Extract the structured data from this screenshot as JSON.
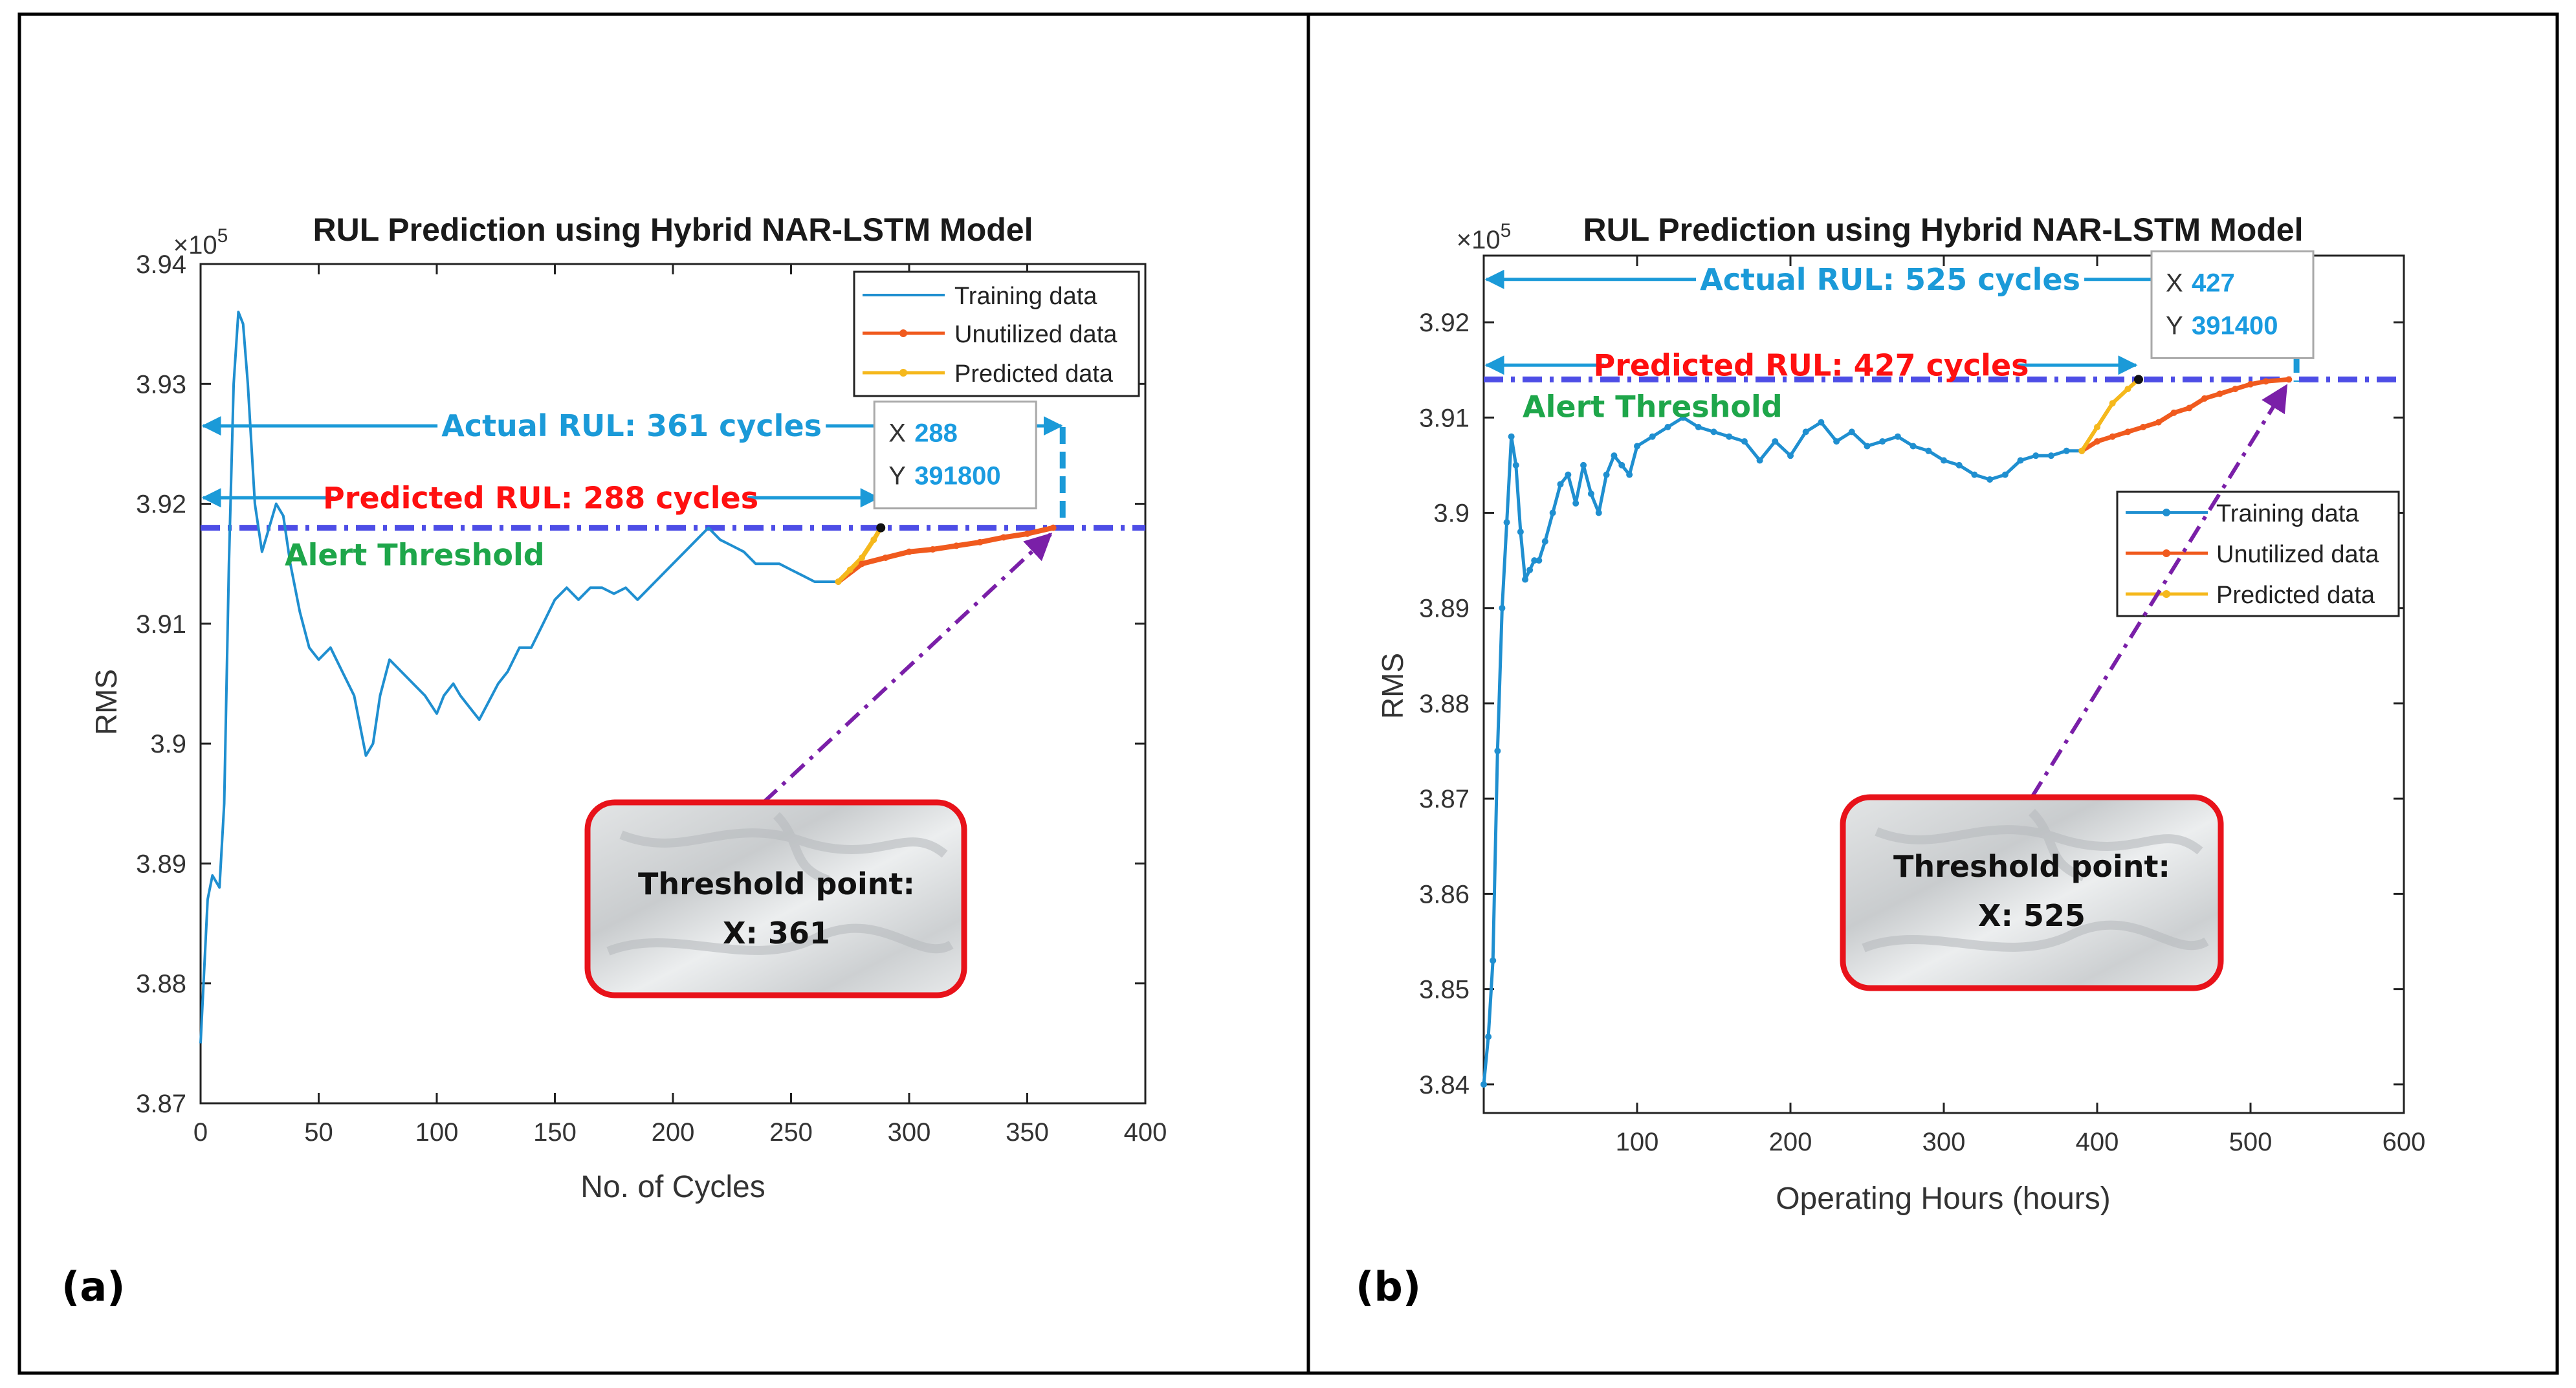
{
  "colors": {
    "training": "#1f8fd0",
    "unutilized": "#f05a1e",
    "predicted": "#f5b81c",
    "threshold": "#4d4de6",
    "actual_rul": "#1b9ad8",
    "predicted_rul": "#ff1010",
    "alert": "#1ea64a",
    "pointer": "#7a1fa8",
    "callout_border": "#e8121a",
    "tip_value": "#1a9be0"
  },
  "chart_data": [
    {
      "panel_label": "(a)",
      "type": "line",
      "title": "RUL Prediction using Hybrid NAR-LSTM Model",
      "xlabel": "No. of Cycles",
      "ylabel": "RMS",
      "y_exponent": "×10",
      "y_exponent_power": "5",
      "xlim": [
        0,
        400
      ],
      "ylim": [
        3.87,
        3.94
      ],
      "xticks": [
        "0",
        "50",
        "100",
        "150",
        "200",
        "250",
        "300",
        "350",
        "400"
      ],
      "xtick_values": [
        0,
        50,
        100,
        150,
        200,
        250,
        300,
        350,
        400
      ],
      "yticks": [
        "3.87",
        "3.88",
        "3.89",
        "3.9",
        "3.91",
        "3.92",
        "3.93",
        "3.94"
      ],
      "ytick_values": [
        3.87,
        3.88,
        3.89,
        3.9,
        3.91,
        3.92,
        3.93,
        3.94
      ],
      "grid": false,
      "legend_position": "top-right",
      "legend": [
        "Training data",
        "Unutilized data",
        "Predicted data"
      ],
      "series": [
        {
          "name": "Training data",
          "markers": false,
          "x": [
            0,
            3,
            5,
            8,
            10,
            12,
            14,
            16,
            18,
            20,
            23,
            26,
            29,
            32,
            35,
            38,
            42,
            46,
            50,
            55,
            60,
            65,
            70,
            73,
            76,
            80,
            85,
            90,
            95,
            100,
            103,
            107,
            110,
            114,
            118,
            122,
            126,
            130,
            135,
            140,
            145,
            150,
            155,
            160,
            165,
            170,
            175,
            180,
            185,
            190,
            195,
            200,
            205,
            210,
            215,
            220,
            225,
            230,
            235,
            240,
            245,
            250,
            255,
            260,
            265,
            270
          ],
          "y": [
            3.875,
            3.887,
            3.889,
            3.888,
            3.895,
            3.915,
            3.93,
            3.936,
            3.935,
            3.93,
            3.92,
            3.916,
            3.918,
            3.92,
            3.919,
            3.915,
            3.911,
            3.908,
            3.907,
            3.908,
            3.906,
            3.904,
            3.899,
            3.9,
            3.904,
            3.907,
            3.906,
            3.905,
            3.904,
            3.9025,
            3.904,
            3.905,
            3.904,
            3.903,
            3.902,
            3.9035,
            3.905,
            3.906,
            3.908,
            3.908,
            3.91,
            3.912,
            3.913,
            3.912,
            3.913,
            3.913,
            3.9125,
            3.913,
            3.912,
            3.913,
            3.914,
            3.915,
            3.916,
            3.917,
            3.918,
            3.917,
            3.9165,
            3.916,
            3.915,
            3.915,
            3.915,
            3.9145,
            3.914,
            3.9135,
            3.9135,
            3.9135
          ]
        },
        {
          "name": "Unutilized data",
          "markers": true,
          "x": [
            270,
            280,
            290,
            300,
            310,
            320,
            330,
            340,
            350,
            361
          ],
          "y": [
            3.9135,
            3.915,
            3.9155,
            3.916,
            3.9162,
            3.9165,
            3.9168,
            3.9172,
            3.9175,
            3.918
          ]
        },
        {
          "name": "Predicted data",
          "markers": true,
          "x": [
            270,
            275,
            280,
            285,
            288
          ],
          "y": [
            3.9135,
            3.9145,
            3.9155,
            3.917,
            3.918
          ]
        }
      ],
      "threshold": {
        "value": 3.918,
        "label": "Alert Threshold"
      },
      "actual_rul": {
        "text": "Actual RUL: 361 cycles",
        "x_start": 0,
        "x_end": 365,
        "y": 3.9265
      },
      "predicted_rul": {
        "text": "Predicted RUL: 288 cycles",
        "x_start": 0,
        "x_end": 288,
        "y": 3.9205
      },
      "datatip": {
        "x_label": "X",
        "x_value": "288",
        "y_label": "Y",
        "y_value": "391800",
        "x": 288,
        "y": 3.918
      },
      "callout": {
        "line1": "Threshold point:",
        "line2": "X: 361",
        "target_x": 361,
        "target_y": 3.918
      }
    },
    {
      "panel_label": "(b)",
      "type": "line",
      "title": "RUL Prediction using Hybrid NAR-LSTM Model",
      "xlabel": "Operating Hours (hours)",
      "ylabel": "RMS",
      "y_exponent": "×10",
      "y_exponent_power": "5",
      "xlim": [
        0,
        600
      ],
      "ylim": [
        3.837,
        3.927
      ],
      "xticks": [
        "100",
        "200",
        "300",
        "400",
        "500",
        "600"
      ],
      "xtick_values": [
        100,
        200,
        300,
        400,
        500,
        600
      ],
      "yticks": [
        "3.84",
        "3.85",
        "3.86",
        "3.87",
        "3.88",
        "3.89",
        "3.9",
        "3.91",
        "3.92"
      ],
      "ytick_values": [
        3.84,
        3.85,
        3.86,
        3.87,
        3.88,
        3.89,
        3.9,
        3.91,
        3.92
      ],
      "grid": false,
      "legend_position": "right",
      "legend": [
        "Training data",
        "Unutilized data",
        "Predicted data"
      ],
      "series": [
        {
          "name": "Training data",
          "markers": true,
          "x": [
            0,
            3,
            6,
            9,
            12,
            15,
            18,
            21,
            24,
            27,
            30,
            33,
            36,
            40,
            45,
            50,
            55,
            60,
            65,
            70,
            75,
            80,
            85,
            90,
            95,
            100,
            110,
            120,
            130,
            140,
            150,
            160,
            170,
            180,
            190,
            200,
            210,
            220,
            230,
            240,
            250,
            260,
            270,
            280,
            290,
            300,
            310,
            320,
            330,
            340,
            350,
            360,
            370,
            380,
            390
          ],
          "y": [
            3.84,
            3.845,
            3.853,
            3.875,
            3.89,
            3.899,
            3.908,
            3.905,
            3.898,
            3.893,
            3.894,
            3.895,
            3.895,
            3.897,
            3.9,
            3.903,
            3.904,
            3.901,
            3.905,
            3.902,
            3.9,
            3.904,
            3.906,
            3.905,
            3.904,
            3.907,
            3.908,
            3.909,
            3.91,
            3.909,
            3.9085,
            3.908,
            3.9075,
            3.9055,
            3.9075,
            3.906,
            3.9085,
            3.9095,
            3.9075,
            3.9085,
            3.907,
            3.9075,
            3.908,
            3.907,
            3.9065,
            3.9055,
            3.905,
            3.904,
            3.9035,
            3.904,
            3.9055,
            3.906,
            3.906,
            3.9065,
            3.9065
          ]
        },
        {
          "name": "Unutilized data",
          "markers": true,
          "x": [
            390,
            400,
            410,
            420,
            430,
            440,
            450,
            460,
            470,
            480,
            490,
            500,
            510,
            525
          ],
          "y": [
            3.9065,
            3.9075,
            3.908,
            3.9085,
            3.909,
            3.9095,
            3.9105,
            3.911,
            3.912,
            3.9125,
            3.913,
            3.9135,
            3.9138,
            3.914
          ]
        },
        {
          "name": "Predicted data",
          "markers": true,
          "x": [
            390,
            400,
            410,
            420,
            427
          ],
          "y": [
            3.9065,
            3.909,
            3.9115,
            3.913,
            3.914
          ]
        }
      ],
      "threshold": {
        "value": 3.914,
        "label": "Alert Threshold"
      },
      "actual_rul": {
        "text": "Actual RUL: 525 cycles",
        "x_start": 0,
        "x_end": 530,
        "y": 3.9245
      },
      "predicted_rul": {
        "text": "Predicted RUL: 427 cycles",
        "x_start": 0,
        "x_end": 427,
        "y": 3.9155
      },
      "datatip": {
        "x_label": "X",
        "x_value": "427",
        "y_label": "Y",
        "y_value": "391400",
        "x": 427,
        "y": 3.914
      },
      "callout": {
        "line1": "Threshold point:",
        "line2": "X: 525",
        "target_x": 525,
        "target_y": 3.914
      }
    }
  ]
}
